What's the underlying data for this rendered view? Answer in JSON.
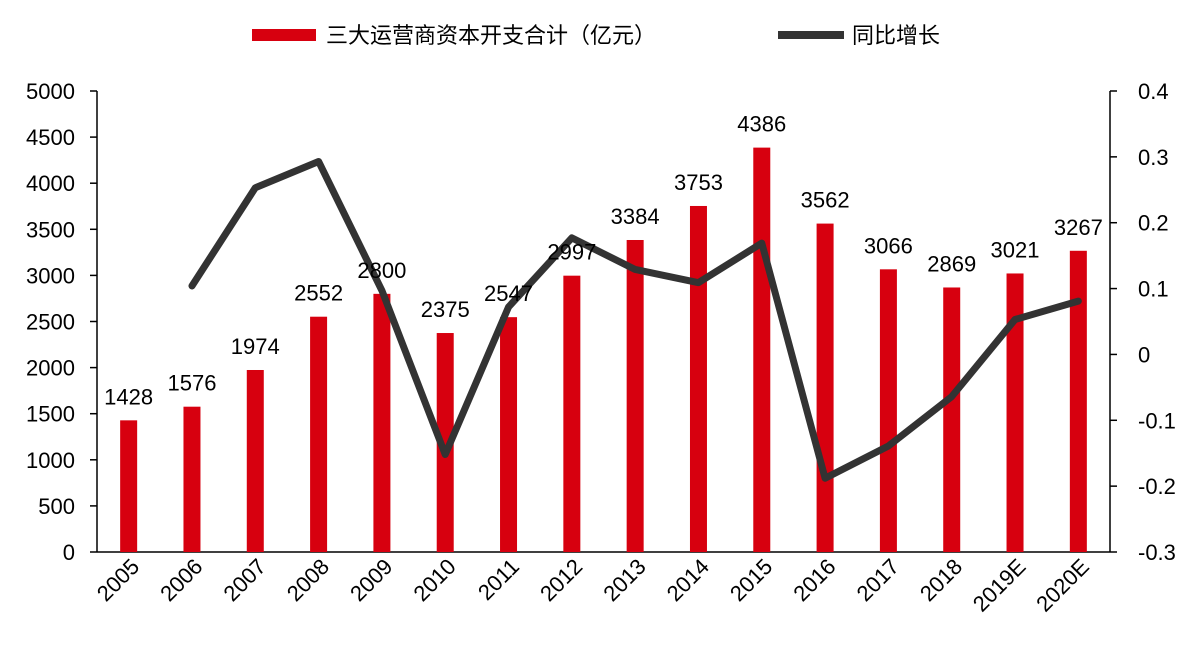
{
  "chart_data": {
    "type": "bar",
    "title": "",
    "categories": [
      "2005",
      "2006",
      "2007",
      "2008",
      "2009",
      "2010",
      "2011",
      "2012",
      "2013",
      "2014",
      "2015",
      "2016",
      "2017",
      "2018",
      "2019E",
      "2020E"
    ],
    "series": [
      {
        "name": "三大运营商资本开支合计（亿元）",
        "type": "bar",
        "axis": "left",
        "color": "#d7000f",
        "values": [
          1428,
          1576,
          1974,
          2552,
          2800,
          2375,
          2547,
          2997,
          3384,
          3753,
          4386,
          3562,
          3066,
          2869,
          3021,
          3267
        ]
      },
      {
        "name": "同比增长",
        "type": "line",
        "axis": "right",
        "color": "#333333",
        "values": [
          null,
          0.104,
          0.253,
          0.293,
          0.097,
          -0.152,
          0.072,
          0.177,
          0.129,
          0.109,
          0.169,
          -0.188,
          -0.139,
          -0.064,
          0.053,
          0.081
        ]
      }
    ],
    "y_left": {
      "min": 0,
      "max": 5000,
      "ticks": [
        0,
        500,
        1000,
        1500,
        2000,
        2500,
        3000,
        3500,
        4000,
        4500,
        5000
      ]
    },
    "y_right": {
      "min": -0.3,
      "max": 0.4,
      "ticks": [
        "-0.3",
        "-0.2",
        "-0.1",
        "0",
        "0.1",
        "0.2",
        "0.3",
        "0.4"
      ]
    },
    "legend_position": "top-center",
    "grid": false
  }
}
